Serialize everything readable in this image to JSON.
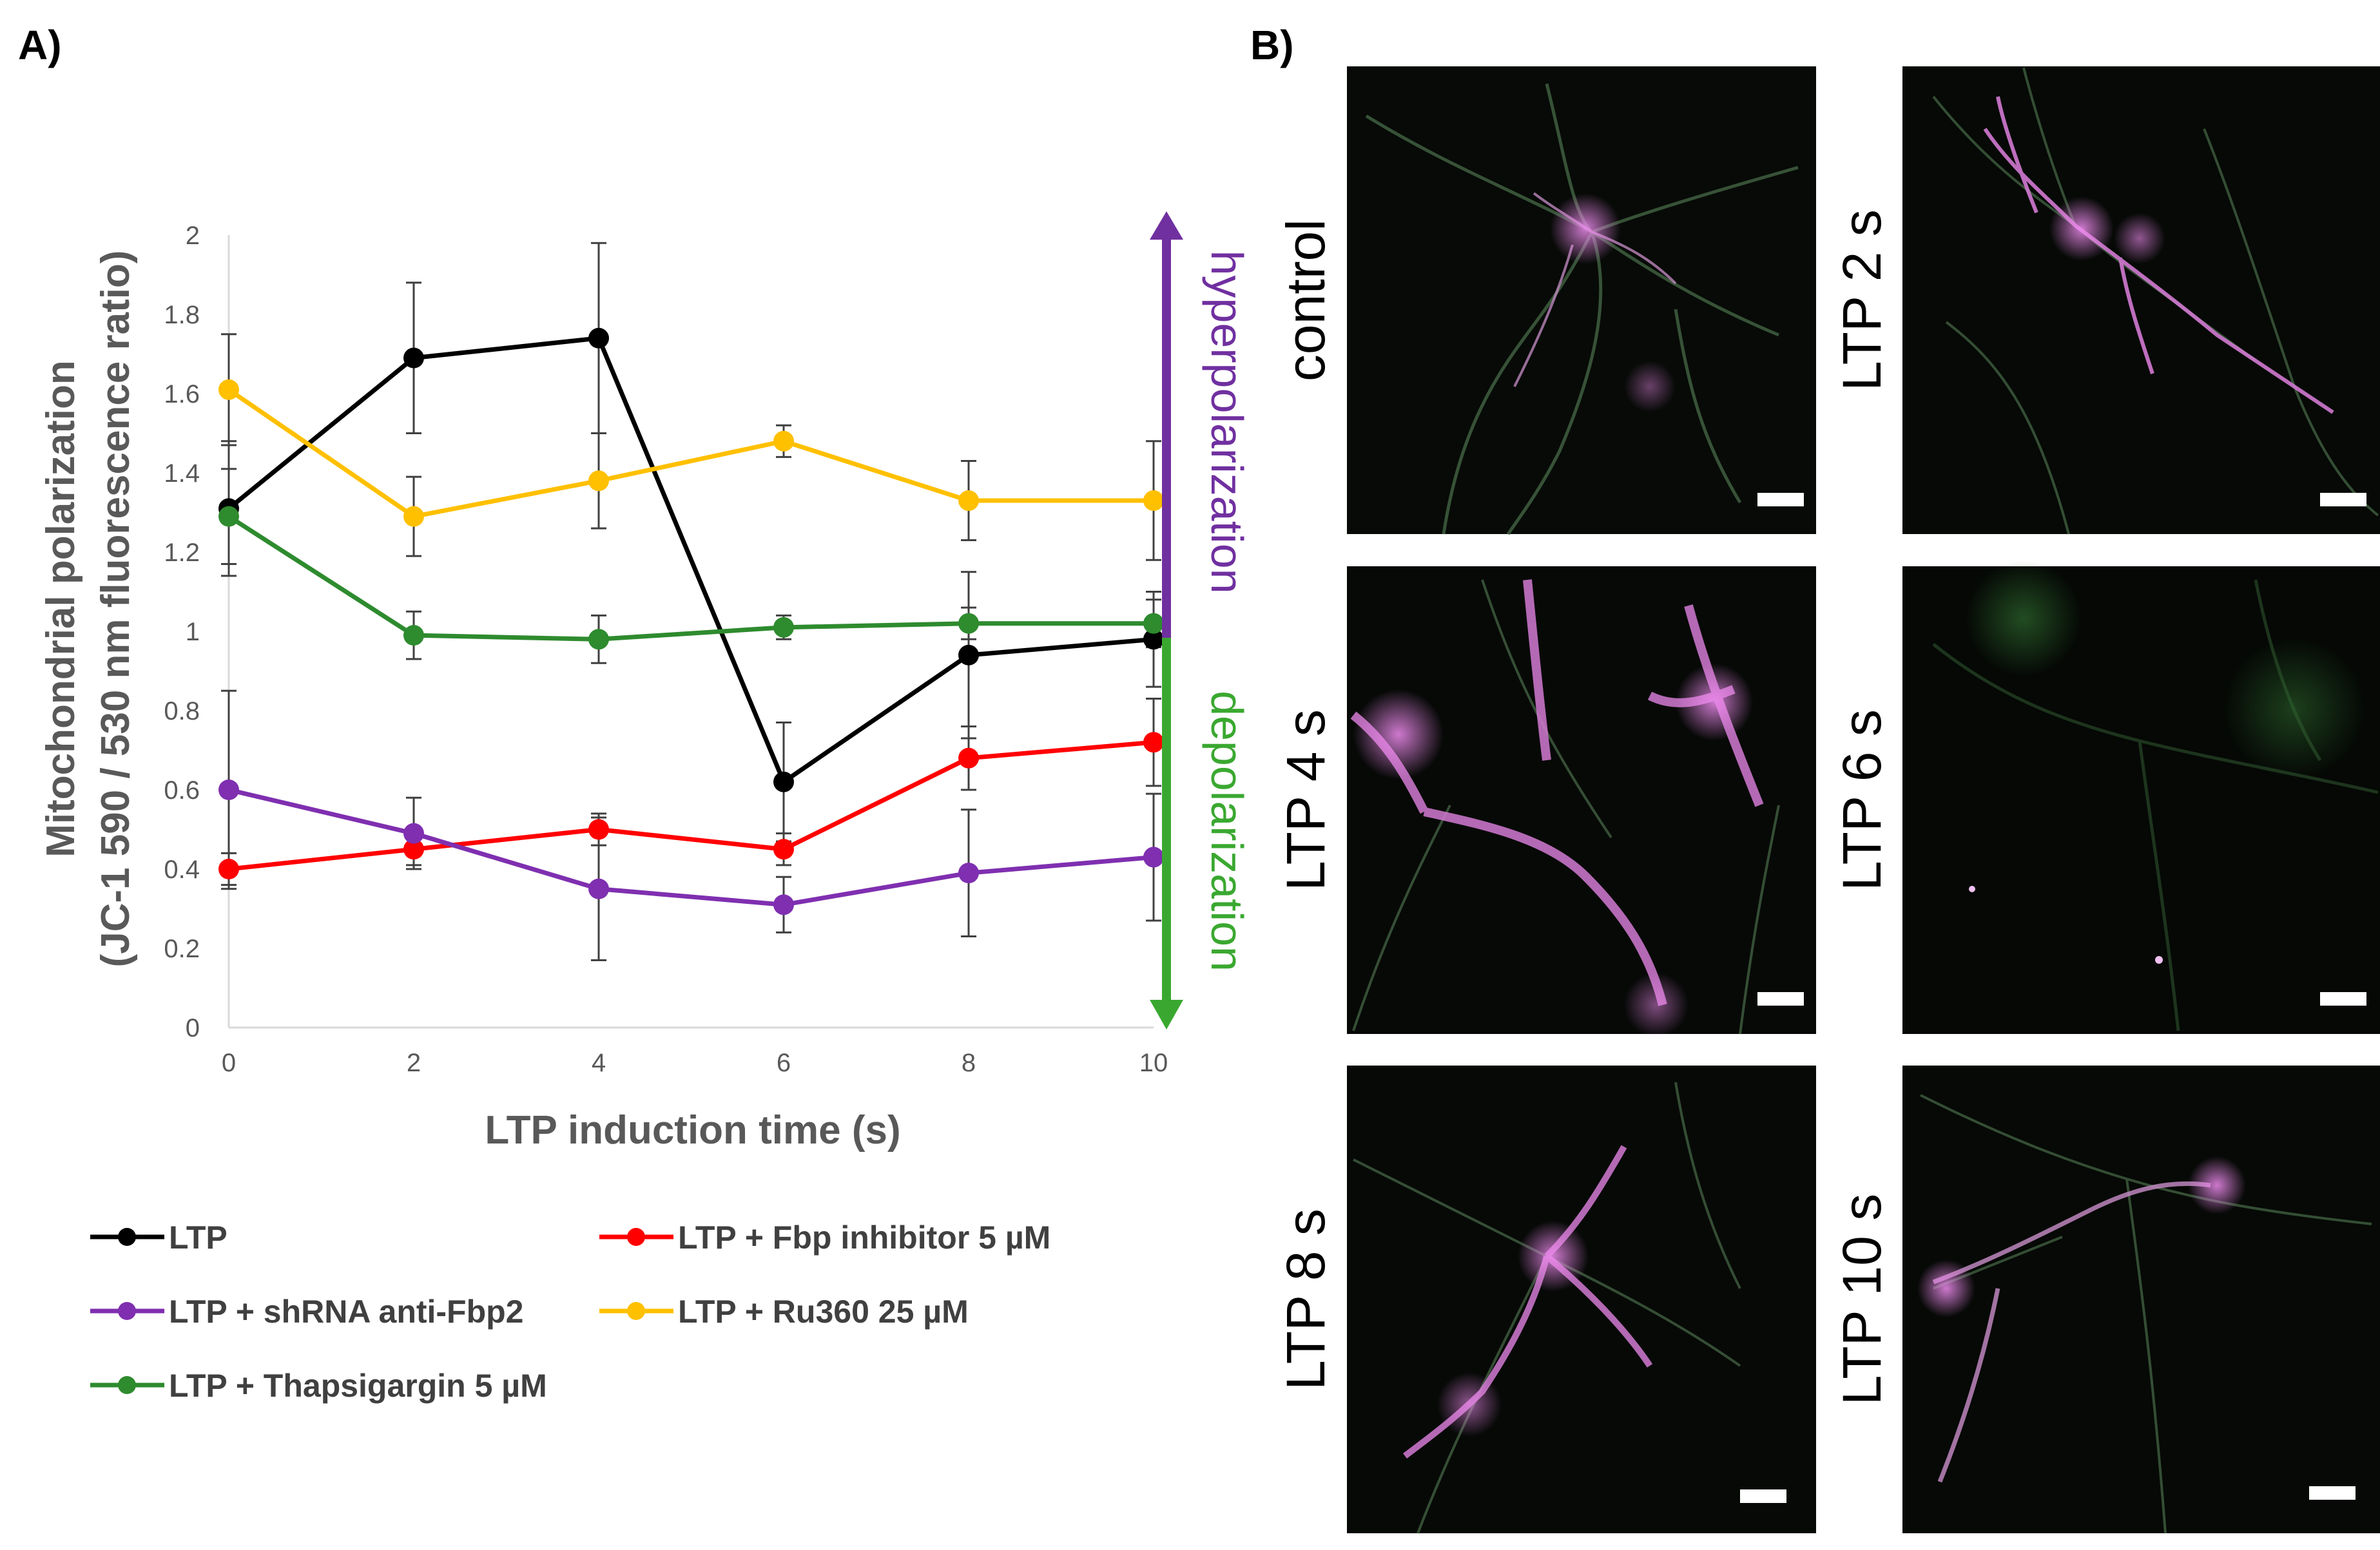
{
  "panels": {
    "a_label": "A)",
    "b_label": "B)"
  },
  "chart_data": {
    "type": "line",
    "title": "",
    "xlabel": "LTP induction time (s)",
    "ylabel_line1": "Mitochondrial polarization",
    "ylabel_line2": "(JC-1 590 / 530 nm fluorescence ratio)",
    "x": [
      0,
      2,
      4,
      6,
      8,
      10
    ],
    "xlim": [
      0,
      10
    ],
    "ylim": [
      0,
      2
    ],
    "yticks": [
      "0",
      "0.2",
      "0.4",
      "0.6",
      "0.8",
      "1",
      "1.2",
      "1.4",
      "1.6",
      "1.8",
      "2"
    ],
    "xticks": [
      "0",
      "2",
      "4",
      "6",
      "8",
      "10"
    ],
    "series": [
      {
        "name": "LTP",
        "color": "#000000",
        "values": [
          1.31,
          1.69,
          1.74,
          0.62,
          0.94,
          0.98
        ],
        "errors": [
          0.17,
          0.19,
          0.24,
          0.15,
          0.21,
          0.12
        ]
      },
      {
        "name": "LTP + Fbp inhibitor 5 µM",
        "color": "#ff0000",
        "values": [
          0.4,
          0.45,
          0.5,
          0.45,
          0.68,
          0.72
        ],
        "errors": [
          0.04,
          0.04,
          0.04,
          0.04,
          0.08,
          0.11
        ]
      },
      {
        "name": "LTP + shRNA anti-Fbp2",
        "color": "#7f2fb0",
        "values": [
          0.6,
          0.49,
          0.35,
          0.31,
          0.39,
          0.43
        ],
        "errors": [
          0.25,
          0.09,
          0.18,
          0.07,
          0.16,
          0.16
        ]
      },
      {
        "name": "LTP + Ru360 25 µM",
        "color": "#ffc000",
        "values": [
          1.61,
          1.29,
          1.38,
          1.48,
          1.33,
          1.33
        ],
        "errors": [
          0.14,
          0.1,
          0.12,
          0.04,
          0.1,
          0.15
        ]
      },
      {
        "name": "LTP + Thapsigargin 5 µM",
        "color": "#2e8b2e",
        "values": [
          1.29,
          0.99,
          0.98,
          1.01,
          1.02,
          1.02
        ],
        "errors": [
          0.12,
          0.06,
          0.06,
          0.03,
          0.04,
          0.06
        ]
      }
    ],
    "arrow_up_label": "hyperpolarization",
    "arrow_down_label": "depolarization",
    "arrow_up_color": "#7030a0",
    "arrow_down_color": "#3aa830",
    "legend_placement": "bottom"
  },
  "micrographs": [
    {
      "label": "control"
    },
    {
      "label": "LTP 2 s"
    },
    {
      "label": "LTP 4 s"
    },
    {
      "label": "LTP 6 s"
    },
    {
      "label": "LTP 8 s"
    },
    {
      "label": "LTP 10 s"
    }
  ]
}
